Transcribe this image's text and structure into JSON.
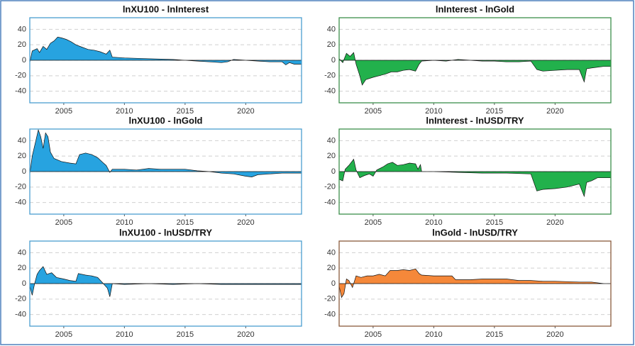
{
  "chart_data": [
    {
      "type": "area",
      "title": "lnXU100 - lnInterest",
      "color": "#27a3e0",
      "grid": true,
      "xlim": [
        2002.2,
        2024.6
      ],
      "xticks": [
        2005,
        2010,
        2015,
        2020
      ],
      "ylim": [
        -55,
        55
      ],
      "yticks": [
        -40,
        -20,
        0,
        20,
        40
      ],
      "x": [
        2002.2,
        2002.4,
        2002.8,
        2003.0,
        2003.3,
        2003.6,
        2003.9,
        2004.2,
        2004.5,
        2004.8,
        2005.2,
        2005.6,
        2006.0,
        2006.5,
        2007.0,
        2007.5,
        2008.0,
        2008.5,
        2008.8,
        2009.0,
        2010,
        2012,
        2014,
        2016,
        2017,
        2018,
        2018.5,
        2019,
        2020,
        2021,
        2022,
        2023,
        2023.3,
        2023.6,
        2024,
        2024.6
      ],
      "values": [
        -3,
        12,
        15,
        10,
        18,
        14,
        22,
        25,
        30,
        29,
        27,
        24,
        20,
        17,
        14,
        13,
        11,
        8,
        13,
        4,
        3,
        2,
        1,
        -1,
        -2,
        -3,
        -2,
        1,
        0,
        -1,
        -2,
        -2,
        -6,
        -3,
        -5,
        -5
      ]
    },
    {
      "type": "area",
      "title": "lnInterest - lnGold",
      "color": "#22b14c",
      "grid": true,
      "xlim": [
        2002.2,
        2024.6
      ],
      "xticks": [
        2005,
        2010,
        2015,
        2020
      ],
      "ylim": [
        -55,
        55
      ],
      "yticks": [
        -40,
        -20,
        0,
        20,
        40
      ],
      "x": [
        2002.2,
        2002.5,
        2002.8,
        2003.1,
        2003.4,
        2003.6,
        2003.9,
        2004.1,
        2004.4,
        2005,
        2005.5,
        2006,
        2006.5,
        2007,
        2007.5,
        2008,
        2008.5,
        2008.8,
        2009,
        2010,
        2011,
        2012,
        2013,
        2014,
        2015,
        2016,
        2017,
        2018,
        2018.5,
        2019,
        2020,
        2021,
        2022,
        2022.4,
        2022.6,
        2023,
        2024,
        2024.6
      ],
      "values": [
        2,
        -3,
        9,
        5,
        10,
        -5,
        -20,
        -32,
        -25,
        -22,
        -20,
        -18,
        -15,
        -15,
        -13,
        -12,
        -14,
        -5,
        -1,
        0,
        -1,
        1,
        0,
        -1,
        -1,
        -2,
        -2,
        -1,
        -12,
        -14,
        -13,
        -12,
        -12,
        -28,
        -11,
        -10,
        -8,
        -8
      ]
    },
    {
      "type": "area",
      "title": "lnXU100 - lnGold",
      "color": "#27a3e0",
      "grid": true,
      "xlim": [
        2002.2,
        2024.6
      ],
      "xticks": [
        2005,
        2010,
        2015,
        2020
      ],
      "ylim": [
        -55,
        55
      ],
      "yticks": [
        -40,
        -20,
        0,
        20,
        40
      ],
      "x": [
        2002.2,
        2002.4,
        2002.7,
        2002.9,
        2003.1,
        2003.3,
        2003.5,
        2003.7,
        2003.9,
        2004.2,
        2004.8,
        2005.5,
        2006,
        2006.3,
        2006.8,
        2007.3,
        2007.8,
        2008.2,
        2008.5,
        2008.8,
        2009,
        2010,
        2011,
        2012,
        2013,
        2015,
        2016,
        2017,
        2018,
        2019,
        2020,
        2020.5,
        2021,
        2022,
        2023,
        2024,
        2024.6
      ],
      "values": [
        -3,
        20,
        40,
        54,
        45,
        30,
        50,
        45,
        25,
        17,
        13,
        11,
        10,
        22,
        24,
        22,
        18,
        12,
        8,
        -1,
        3,
        3,
        2,
        4,
        3,
        3,
        1,
        0,
        -2,
        -3,
        -6,
        -7,
        -4,
        -3,
        -2,
        -2,
        -2
      ]
    },
    {
      "type": "area",
      "title": "lnInterest - lnUSD/TRY",
      "color": "#22b14c",
      "grid": true,
      "xlim": [
        2002.2,
        2024.6
      ],
      "xticks": [
        2005,
        2010,
        2015,
        2020
      ],
      "ylim": [
        -55,
        55
      ],
      "yticks": [
        -40,
        -20,
        0,
        20,
        40
      ],
      "x": [
        2002.2,
        2002.5,
        2002.7,
        2003,
        2003.4,
        2003.6,
        2003.9,
        2004.3,
        2004.7,
        2005,
        2005.3,
        2005.8,
        2006.2,
        2006.6,
        2007,
        2007.5,
        2008,
        2008.5,
        2008.7,
        2008.9,
        2009,
        2010,
        2012,
        2014,
        2016,
        2018,
        2018.5,
        2019,
        2020,
        2021,
        2022,
        2022.4,
        2022.6,
        2023,
        2023.5,
        2024,
        2024.6
      ],
      "values": [
        -10,
        -12,
        3,
        8,
        16,
        2,
        -8,
        -5,
        -3,
        -6,
        2,
        6,
        10,
        12,
        8,
        9,
        11,
        10,
        3,
        9,
        0,
        0,
        -1,
        -2,
        -2,
        -3,
        -25,
        -23,
        -22,
        -20,
        -16,
        -32,
        -14,
        -12,
        -8,
        -8,
        -8
      ]
    },
    {
      "type": "area",
      "title": "lnXU100 - lnUSD/TRY",
      "color": "#27a3e0",
      "grid": true,
      "xlim": [
        2002.2,
        2024.6
      ],
      "xticks": [
        2005,
        2010,
        2015,
        2020
      ],
      "ylim": [
        -55,
        55
      ],
      "yticks": [
        -40,
        -20,
        0,
        20,
        40
      ],
      "x": [
        2002.2,
        2002.4,
        2002.6,
        2002.8,
        2003,
        2003.3,
        2003.6,
        2004,
        2004.4,
        2005,
        2005.5,
        2006,
        2006.2,
        2006.8,
        2007.3,
        2007.8,
        2008.2,
        2008.6,
        2008.8,
        2009,
        2010,
        2012,
        2014,
        2016,
        2018,
        2019,
        2020,
        2022,
        2024,
        2024.6
      ],
      "values": [
        -3,
        -15,
        0,
        12,
        17,
        22,
        12,
        14,
        8,
        6,
        4,
        3,
        13,
        11,
        10,
        8,
        1,
        -6,
        -17,
        0,
        -1,
        0,
        -1,
        0,
        -1,
        -1,
        -1,
        -1,
        -1,
        -1
      ]
    },
    {
      "type": "area",
      "title": "lnGold - lnUSD/TRY",
      "color": "#f5883a",
      "grid": true,
      "xlim": [
        2002.2,
        2024.6
      ],
      "xticks": [
        2005,
        2010,
        2015,
        2020
      ],
      "ylim": [
        -55,
        55
      ],
      "yticks": [
        -40,
        -20,
        0,
        20,
        40
      ],
      "x": [
        2002.2,
        2002.4,
        2002.6,
        2002.8,
        2003,
        2003.3,
        2003.6,
        2004,
        2004.5,
        2005,
        2005.5,
        2006,
        2006.4,
        2007,
        2007.5,
        2008,
        2008.5,
        2008.8,
        2009,
        2010,
        2011,
        2011.5,
        2011.8,
        2013,
        2014,
        2016,
        2017,
        2018,
        2019,
        2020,
        2022,
        2023,
        2024,
        2024.6
      ],
      "values": [
        -3,
        -18,
        -13,
        6,
        4,
        -5,
        10,
        8,
        10,
        10,
        12,
        10,
        17,
        17,
        18,
        17,
        19,
        13,
        11,
        10,
        10,
        10,
        5,
        5,
        6,
        6,
        4,
        4,
        3,
        3,
        2,
        2,
        0,
        0
      ]
    }
  ]
}
